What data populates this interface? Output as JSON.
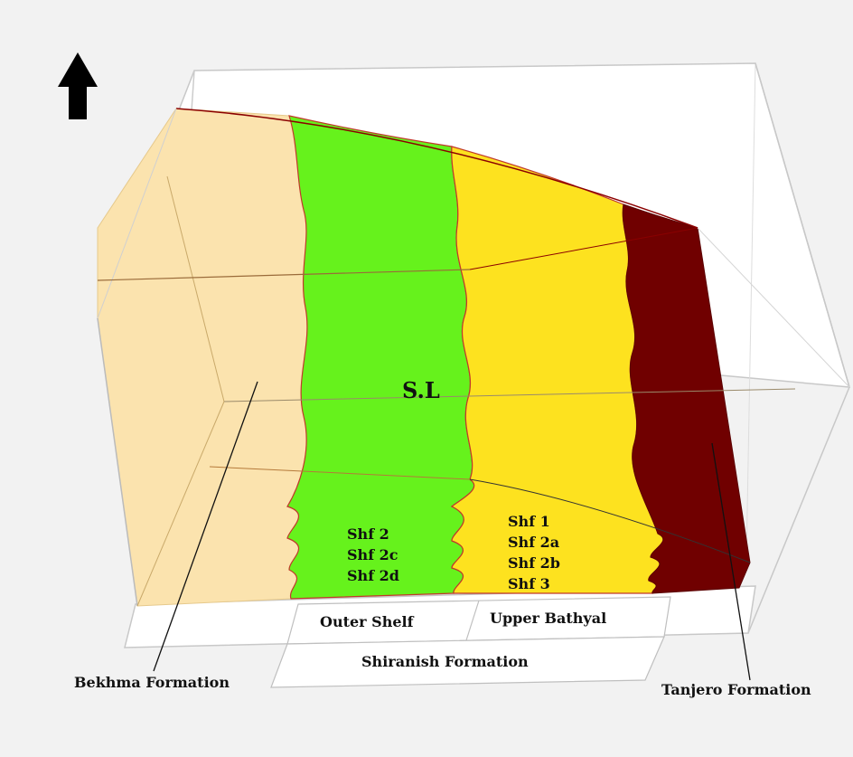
{
  "diagram": {
    "north_arrow": "up-arrow-icon",
    "sea_level_label": "S.L",
    "facies_left_codes": [
      "Shf 2",
      "Shf 2c",
      "Shf 2d"
    ],
    "facies_right_codes": [
      "Shf 1",
      "Shf 2a",
      "Shf 2b",
      "Shf 3"
    ],
    "environments": {
      "outer_shelf": "Outer Shelf",
      "upper_bathyal": "Upper Bathyal"
    },
    "formations": {
      "shiranish": "Shiranish Formation",
      "bekhma": "Bekhma Formation",
      "tanjero": "Tanjero Formation"
    },
    "colors": {
      "bekhma": "#fbe3ae",
      "outer_shelf": "#66f21c",
      "upper_bathyal": "#fde21f",
      "tanjero": "#700000",
      "background": "#f2f2f2"
    }
  }
}
